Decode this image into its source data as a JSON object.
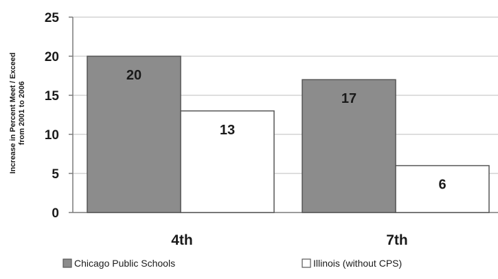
{
  "chart_data": {
    "type": "bar",
    "title": "",
    "xlabel": "",
    "ylabel": "Increase in Percent Meet / Exceed from 2001 to 2006",
    "categories": [
      "4th",
      "7th"
    ],
    "series": [
      {
        "name": "Chicago Public Schools",
        "values": [
          20,
          17
        ],
        "data_labels": [
          "20",
          "17"
        ],
        "color": "#8c8c8c"
      },
      {
        "name": "Illinois (without CPS)",
        "values": [
          13,
          6
        ],
        "data_labels": [
          "13",
          "6"
        ],
        "color": "#ffffff"
      }
    ],
    "ylim": [
      0,
      25
    ],
    "yticks": [
      0,
      5,
      10,
      15,
      20,
      25
    ],
    "ytick_labels": [
      "0",
      "5",
      "10",
      "15",
      "20",
      "25"
    ],
    "grid": true,
    "legend": "bottom"
  }
}
